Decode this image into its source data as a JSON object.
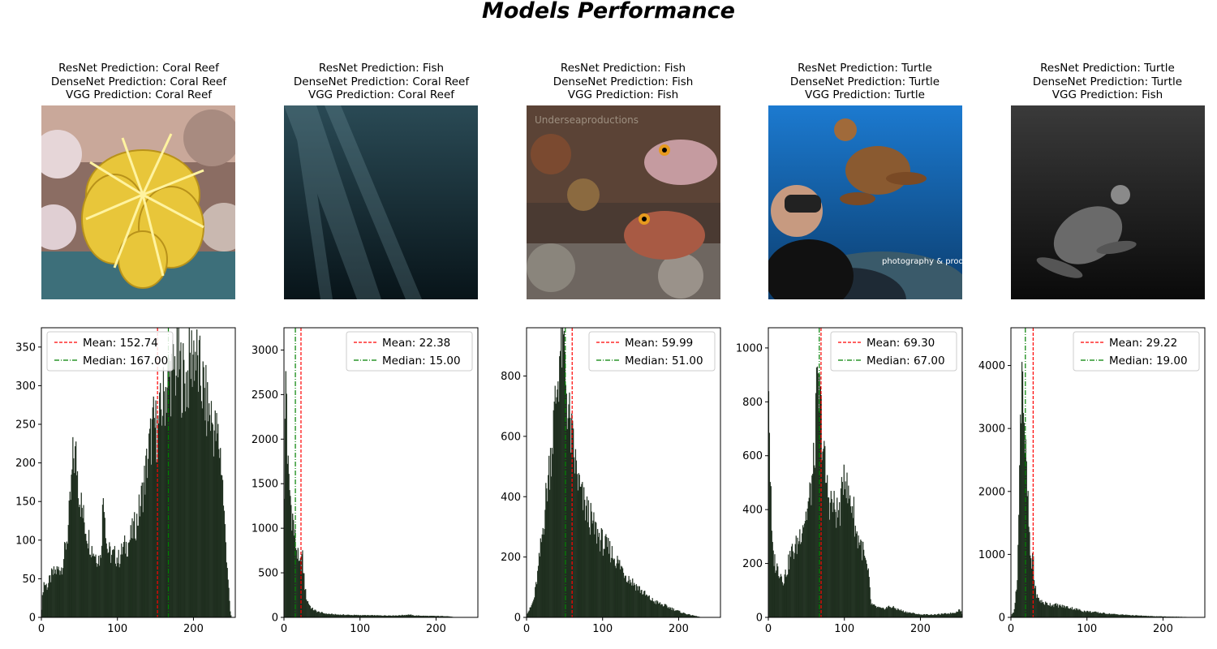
{
  "figure": {
    "title": "Models Performance"
  },
  "panels": [
    {
      "resnet": "ResNet Prediction: Coral Reef",
      "densenet": "DenseNet Prediction: Coral Reef",
      "vgg": "VGG Prediction: Coral Reef",
      "image_subject": "yellow crinoid on coral reef"
    },
    {
      "resnet": "ResNet Prediction: Fish",
      "densenet": "DenseNet Prediction: Coral Reef",
      "vgg": "VGG Prediction: Coral Reef",
      "image_subject": "dark underwater scene with light rays"
    },
    {
      "resnet": "ResNet Prediction: Fish",
      "densenet": "DenseNet Prediction: Fish",
      "vgg": "VGG Prediction: Fish",
      "image_subject": "two red fish over reef",
      "watermark": "Underseaproductions"
    },
    {
      "resnet": "ResNet Prediction: Turtle",
      "densenet": "DenseNet Prediction: Turtle",
      "vgg": "VGG Prediction: Turtle",
      "image_subject": "diver with sea turtle",
      "watermark": "photography & production Josh Jensen"
    },
    {
      "resnet": "ResNet Prediction: Turtle",
      "densenet": "DenseNet Prediction: Turtle",
      "vgg": "VGG Prediction: Fish",
      "image_subject": "sea turtle in dark water"
    }
  ],
  "colors": {
    "bar": "#0a1a0a",
    "mean": "#ff0000",
    "median": "#008000"
  },
  "chart_data": [
    {
      "type": "bar",
      "title": "",
      "xlim": [
        0,
        255
      ],
      "ylim": [
        0,
        375
      ],
      "xticks": [
        0,
        100,
        200
      ],
      "yticks": [
        0,
        50,
        100,
        150,
        200,
        250,
        300,
        350
      ],
      "mean": 152.74,
      "median": 167.0,
      "legend": {
        "placement": "top-left",
        "mean_label": "Mean: 152.74",
        "median_label": "Median: 167.00"
      },
      "profile": [
        [
          0,
          5
        ],
        [
          3,
          45
        ],
        [
          8,
          40
        ],
        [
          14,
          55
        ],
        [
          20,
          60
        ],
        [
          27,
          65
        ],
        [
          30,
          80
        ],
        [
          35,
          110
        ],
        [
          39,
          160
        ],
        [
          42,
          210
        ],
        [
          46,
          205
        ],
        [
          50,
          160
        ],
        [
          55,
          130
        ],
        [
          60,
          110
        ],
        [
          66,
          90
        ],
        [
          72,
          80
        ],
        [
          78,
          75
        ],
        [
          82,
          170
        ],
        [
          86,
          90
        ],
        [
          92,
          80
        ],
        [
          97,
          80
        ],
        [
          102,
          75
        ],
        [
          108,
          90
        ],
        [
          114,
          95
        ],
        [
          120,
          110
        ],
        [
          126,
          125
        ],
        [
          131,
          150
        ],
        [
          137,
          185
        ],
        [
          142,
          220
        ],
        [
          148,
          250
        ],
        [
          153,
          240
        ],
        [
          158,
          270
        ],
        [
          163,
          295
        ],
        [
          168,
          310
        ],
        [
          174,
          320
        ],
        [
          180,
          330
        ],
        [
          186,
          310
        ],
        [
          191,
          305
        ],
        [
          196,
          330
        ],
        [
          201,
          350
        ],
        [
          206,
          320
        ],
        [
          212,
          300
        ],
        [
          218,
          270
        ],
        [
          223,
          260
        ],
        [
          228,
          240
        ],
        [
          233,
          230
        ],
        [
          237,
          200
        ],
        [
          241,
          120
        ],
        [
          245,
          60
        ],
        [
          248,
          10
        ],
        [
          250,
          0
        ]
      ]
    },
    {
      "type": "bar",
      "title": "",
      "xlim": [
        0,
        255
      ],
      "ylim": [
        0,
        3250
      ],
      "xticks": [
        0,
        100,
        200
      ],
      "yticks": [
        0,
        500,
        1000,
        1500,
        2000,
        2500,
        3000
      ],
      "mean": 22.38,
      "median": 15.0,
      "legend": {
        "placement": "top-right",
        "mean_label": "Mean: 22.38",
        "median_label": "Median: 15.00"
      },
      "profile": [
        [
          0,
          1200
        ],
        [
          1,
          1800
        ],
        [
          2,
          2300
        ],
        [
          3,
          3100
        ],
        [
          4,
          2000
        ],
        [
          6,
          1500
        ],
        [
          8,
          1400
        ],
        [
          10,
          1200
        ],
        [
          12,
          1100
        ],
        [
          14,
          900
        ],
        [
          16,
          800
        ],
        [
          18,
          700
        ],
        [
          20,
          550
        ],
        [
          22,
          600
        ],
        [
          24,
          700
        ],
        [
          26,
          500
        ],
        [
          28,
          300
        ],
        [
          30,
          200
        ],
        [
          33,
          150
        ],
        [
          36,
          100
        ],
        [
          40,
          80
        ],
        [
          45,
          60
        ],
        [
          55,
          40
        ],
        [
          70,
          30
        ],
        [
          90,
          25
        ],
        [
          110,
          22
        ],
        [
          130,
          20
        ],
        [
          150,
          20
        ],
        [
          165,
          30
        ],
        [
          170,
          20
        ],
        [
          190,
          15
        ],
        [
          215,
          12
        ],
        [
          225,
          0
        ]
      ]
    },
    {
      "type": "bar",
      "title": "",
      "xlim": [
        0,
        255
      ],
      "ylim": [
        0,
        960
      ],
      "xticks": [
        0,
        100,
        200
      ],
      "yticks": [
        0,
        200,
        400,
        600,
        800
      ],
      "mean": 59.99,
      "median": 51.0,
      "legend": {
        "placement": "top-right",
        "mean_label": "Mean: 59.99",
        "median_label": "Median: 51.00"
      },
      "profile": [
        [
          0,
          10
        ],
        [
          5,
          30
        ],
        [
          10,
          60
        ],
        [
          15,
          150
        ],
        [
          20,
          260
        ],
        [
          25,
          380
        ],
        [
          30,
          500
        ],
        [
          35,
          620
        ],
        [
          40,
          760
        ],
        [
          44,
          880
        ],
        [
          47,
          920
        ],
        [
          50,
          860
        ],
        [
          54,
          700
        ],
        [
          58,
          620
        ],
        [
          62,
          540
        ],
        [
          66,
          480
        ],
        [
          70,
          420
        ],
        [
          76,
          370
        ],
        [
          82,
          340
        ],
        [
          88,
          300
        ],
        [
          95,
          270
        ],
        [
          102,
          240
        ],
        [
          110,
          220
        ],
        [
          118,
          190
        ],
        [
          126,
          160
        ],
        [
          134,
          130
        ],
        [
          142,
          110
        ],
        [
          150,
          90
        ],
        [
          158,
          70
        ],
        [
          166,
          55
        ],
        [
          175,
          45
        ],
        [
          185,
          35
        ],
        [
          195,
          25
        ],
        [
          205,
          15
        ],
        [
          215,
          8
        ],
        [
          225,
          3
        ],
        [
          230,
          0
        ]
      ]
    },
    {
      "type": "bar",
      "title": "",
      "xlim": [
        0,
        255
      ],
      "ylim": [
        0,
        1075
      ],
      "xticks": [
        0,
        100,
        200
      ],
      "yticks": [
        0,
        200,
        400,
        600,
        800,
        1000
      ],
      "mean": 69.3,
      "median": 67.0,
      "legend": {
        "placement": "top-right",
        "mean_label": "Mean: 69.30",
        "median_label": "Median: 67.00"
      },
      "profile": [
        [
          0,
          1020
        ],
        [
          2,
          600
        ],
        [
          5,
          250
        ],
        [
          10,
          190
        ],
        [
          15,
          170
        ],
        [
          20,
          140
        ],
        [
          25,
          180
        ],
        [
          30,
          240
        ],
        [
          35,
          250
        ],
        [
          40,
          290
        ],
        [
          45,
          350
        ],
        [
          50,
          380
        ],
        [
          55,
          450
        ],
        [
          60,
          560
        ],
        [
          64,
          830
        ],
        [
          68,
          800
        ],
        [
          72,
          640
        ],
        [
          76,
          500
        ],
        [
          80,
          440
        ],
        [
          84,
          420
        ],
        [
          88,
          400
        ],
        [
          92,
          380
        ],
        [
          96,
          420
        ],
        [
          100,
          590
        ],
        [
          104,
          450
        ],
        [
          108,
          440
        ],
        [
          112,
          400
        ],
        [
          116,
          300
        ],
        [
          120,
          290
        ],
        [
          124,
          250
        ],
        [
          128,
          200
        ],
        [
          132,
          150
        ],
        [
          135,
          50
        ],
        [
          140,
          40
        ],
        [
          150,
          30
        ],
        [
          160,
          40
        ],
        [
          170,
          30
        ],
        [
          180,
          20
        ],
        [
          200,
          10
        ],
        [
          220,
          10
        ],
        [
          240,
          15
        ],
        [
          248,
          20
        ],
        [
          252,
          30
        ],
        [
          255,
          10
        ]
      ]
    },
    {
      "type": "bar",
      "title": "",
      "xlim": [
        0,
        255
      ],
      "ylim": [
        0,
        4600
      ],
      "xticks": [
        0,
        100,
        200
      ],
      "yticks": [
        0,
        1000,
        2000,
        3000,
        4000
      ],
      "mean": 29.22,
      "median": 19.0,
      "legend": {
        "placement": "top-right",
        "mean_label": "Mean: 29.22",
        "median_label": "Median: 19.00"
      },
      "profile": [
        [
          0,
          10
        ],
        [
          4,
          100
        ],
        [
          8,
          500
        ],
        [
          11,
          1800
        ],
        [
          13,
          3500
        ],
        [
          15,
          4400
        ],
        [
          17,
          3300
        ],
        [
          19,
          2600
        ],
        [
          21,
          2100
        ],
        [
          23,
          1600
        ],
        [
          25,
          1100
        ],
        [
          27,
          700
        ],
        [
          29,
          1100
        ],
        [
          31,
          500
        ],
        [
          35,
          300
        ],
        [
          40,
          250
        ],
        [
          45,
          220
        ],
        [
          55,
          200
        ],
        [
          65,
          180
        ],
        [
          75,
          160
        ],
        [
          85,
          130
        ],
        [
          95,
          100
        ],
        [
          110,
          80
        ],
        [
          125,
          60
        ],
        [
          140,
          45
        ],
        [
          155,
          35
        ],
        [
          170,
          25
        ],
        [
          190,
          15
        ],
        [
          210,
          10
        ],
        [
          230,
          5
        ],
        [
          240,
          0
        ]
      ]
    }
  ]
}
